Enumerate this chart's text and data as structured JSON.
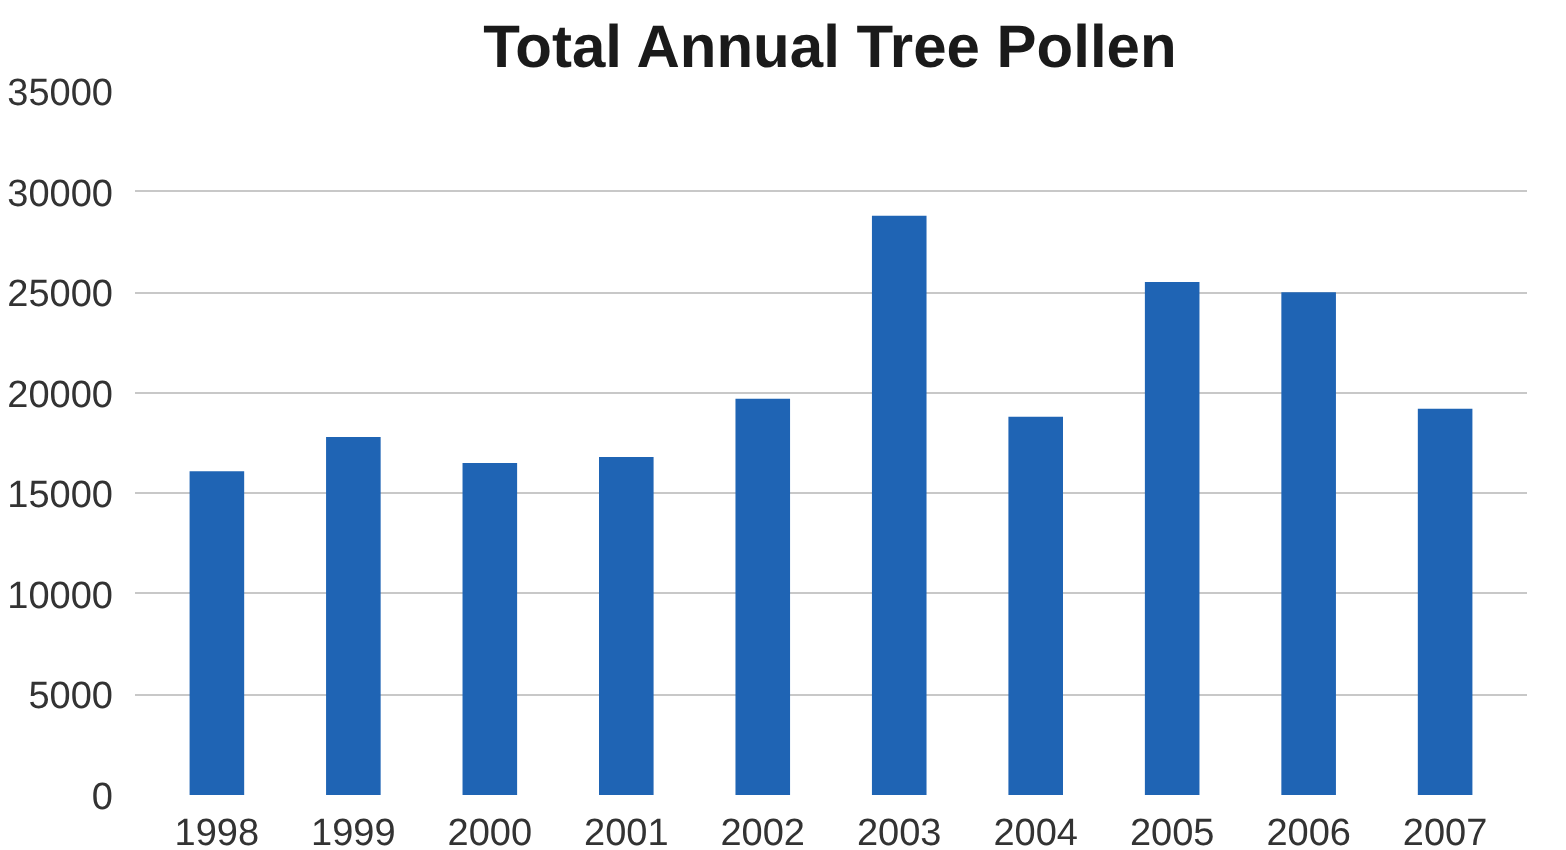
{
  "chart_data": {
    "type": "bar",
    "title": "Total Annual Tree Pollen",
    "categories": [
      "1998",
      "1999",
      "2000",
      "2001",
      "2002",
      "2003",
      "2004",
      "2005",
      "2006",
      "2007"
    ],
    "values": [
      16100,
      17800,
      16500,
      16800,
      19700,
      28800,
      18800,
      25500,
      25000,
      19200
    ],
    "color": "#1f64b4",
    "ylim": [
      0,
      35000
    ],
    "yticks": [
      0,
      5000,
      10000,
      15000,
      20000,
      25000,
      30000,
      35000
    ],
    "grid": "y"
  }
}
